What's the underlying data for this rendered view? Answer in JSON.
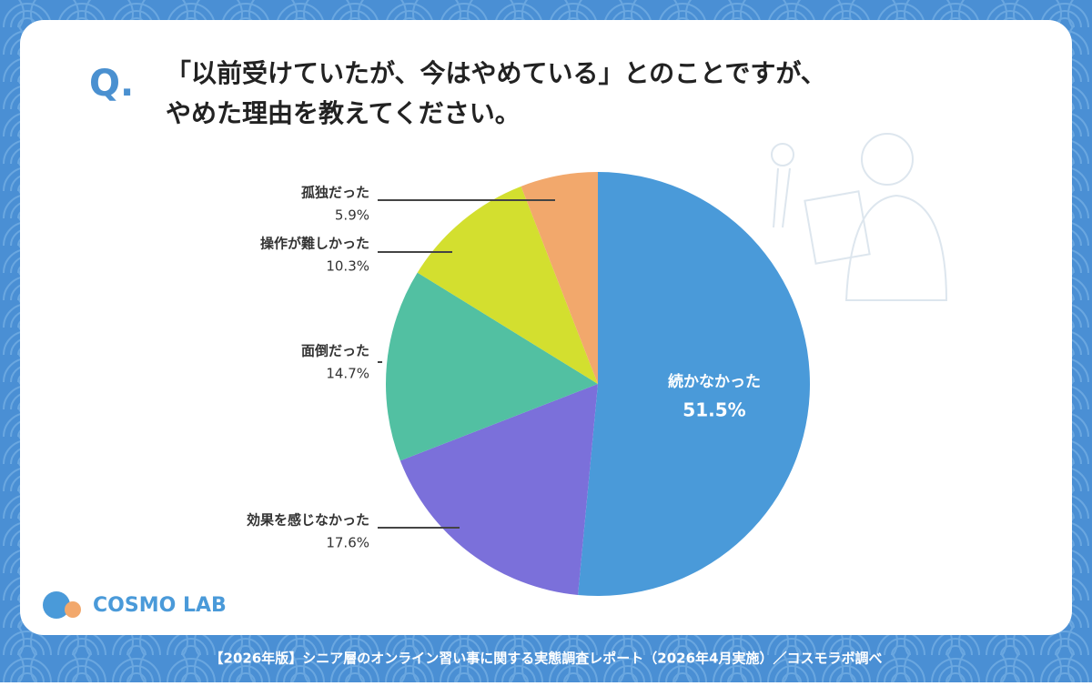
{
  "chart_data": {
    "type": "pie",
    "question_label": "Q.",
    "title": [
      "「以前受けていたが、今はやめている」とのことですが、",
      "やめた理由を教えてください。"
    ],
    "categories": [
      "続かなかった",
      "効果を感じなかった",
      "面倒だった",
      "操作が難しかった",
      "孤独だった"
    ],
    "values": [
      51.5,
      17.6,
      14.7,
      10.3,
      5.9
    ],
    "value_labels": [
      "51.5%",
      "17.6%",
      "14.7%",
      "10.3%",
      "5.9%"
    ],
    "colors": [
      "#4a9ad9",
      "#7b70da",
      "#52c0a2",
      "#d3df2f",
      "#f2a86c"
    ],
    "logo": "COSMO LAB",
    "footer": "【2026年版】シニア層のオンライン習い事に関する実態調査レポート（2026年4月実施）／コスモラボ調べ"
  }
}
